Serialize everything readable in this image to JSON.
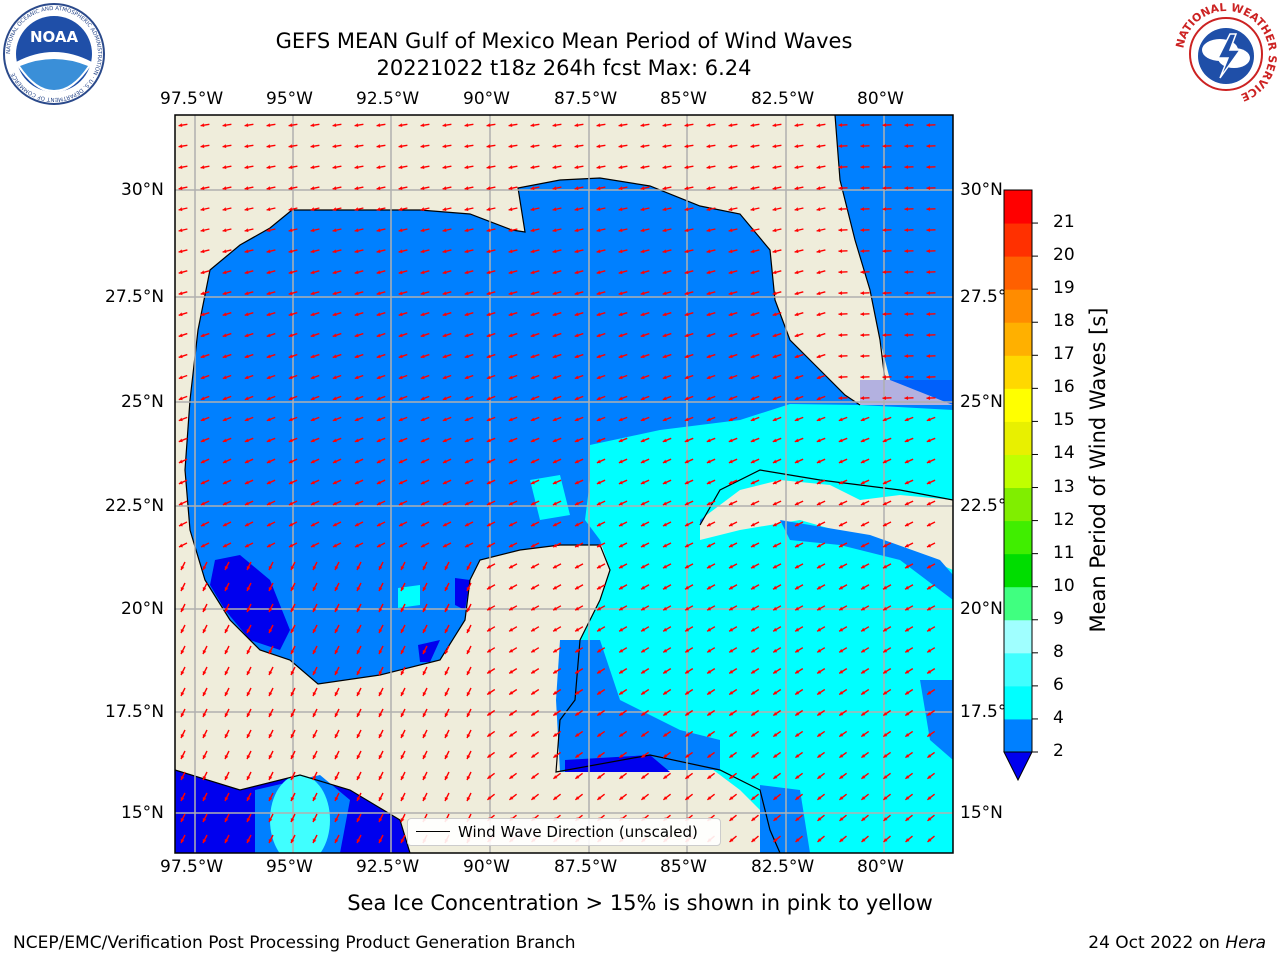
{
  "title": {
    "line1": "GEFS MEAN Gulf of Mexico Mean Period of Wind Waves",
    "line2": "20221022 t18z 264h fcst   Max: 6.24"
  },
  "logos": {
    "left_icon": "noaa-logo",
    "left_text": "NOAA",
    "left_ring_text": "NATIONAL OCEANIC AND ATMOSPHERIC ADMINISTRATION · U.S. DEPARTMENT OF COMMERCE",
    "right_icon": "nws-logo",
    "right_ring_text": "NATIONAL WEATHER SERVICE"
  },
  "map": {
    "x_ticks": [
      "97.5°W",
      "95°W",
      "92.5°W",
      "90°W",
      "87.5°W",
      "85°W",
      "82.5°W",
      "80°W"
    ],
    "y_ticks": [
      "30°N",
      "27.5°N",
      "25°N",
      "22.5°N",
      "20°N",
      "17.5°N",
      "15°N"
    ],
    "colors": {
      "land": "#efeddb",
      "level_2_4": "#0080ff",
      "level_4_6": "#00ffff",
      "level_under_2": "#0000ee",
      "arrow": "#ff0000",
      "grid": "#b0b0b0"
    }
  },
  "legend": {
    "label": "Wind Wave Direction (unscaled)"
  },
  "colorbar": {
    "label": "Mean Period of Wind Waves [s]",
    "ticks": [
      "2",
      "4",
      "6",
      "8",
      "9",
      "10",
      "11",
      "12",
      "13",
      "14",
      "15",
      "16",
      "17",
      "18",
      "19",
      "20",
      "21"
    ],
    "colors": [
      "#0080ff",
      "#00ffff",
      "#40ffff",
      "#a0ffff",
      "#40ff80",
      "#00dd00",
      "#40ee00",
      "#80ee00",
      "#c0ff00",
      "#e8f000",
      "#ffff00",
      "#ffd800",
      "#ffb000",
      "#ff8c00",
      "#ff6000",
      "#ff3000",
      "#ff0000"
    ],
    "extend_color": "#0000ee"
  },
  "caption": "Sea Ice Concentration > 15% is shown in pink to yellow",
  "footer": {
    "left": "NCEP/EMC/Verification Post Processing Product Generation Branch",
    "right_date": "24 Oct 2022 on ",
    "right_host": "Hera"
  }
}
